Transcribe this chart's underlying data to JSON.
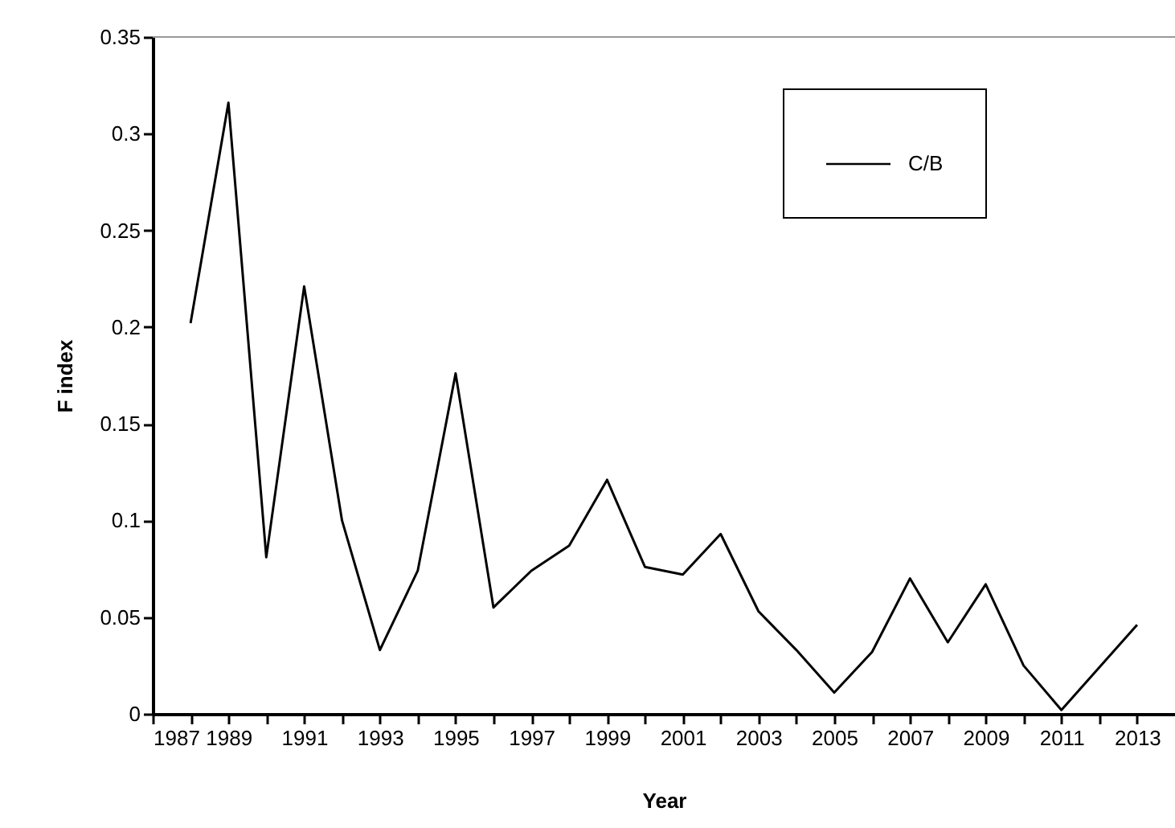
{
  "chart_data": {
    "type": "line",
    "xlabel": "Year",
    "ylabel": "F index",
    "x": [
      1988,
      1989,
      1990,
      1991,
      1992,
      1993,
      1994,
      1995,
      1996,
      1997,
      1998,
      1999,
      2000,
      2001,
      2002,
      2003,
      2004,
      2005,
      2006,
      2007,
      2008,
      2009,
      2010,
      2011,
      2012,
      2013
    ],
    "series": [
      {
        "name": "C/B",
        "color": "#000000",
        "values": [
          0.202,
          0.316,
          0.081,
          0.221,
          0.1,
          0.033,
          0.074,
          0.176,
          0.055,
          0.074,
          0.087,
          0.121,
          0.076,
          0.072,
          0.093,
          0.053,
          0.033,
          0.011,
          0.032,
          0.07,
          0.037,
          0.067,
          0.025,
          0.002,
          0.024,
          0.046
        ]
      }
    ],
    "xlim": [
      1987,
      2014
    ],
    "xticks": [
      1987,
      {
        "value": 1988,
        "label": null
      },
      1989,
      {
        "value": 1990,
        "label": null
      },
      1991,
      {
        "value": 1992,
        "label": null
      },
      1993,
      {
        "value": 1994,
        "label": null
      },
      1995,
      {
        "value": 1996,
        "label": null
      },
      1997,
      {
        "value": 1998,
        "label": null
      },
      1999,
      {
        "value": 2000,
        "label": null
      },
      2001,
      {
        "value": 2002,
        "label": null
      },
      2003,
      {
        "value": 2004,
        "label": null
      },
      2005,
      {
        "value": 2006,
        "label": null
      },
      2007,
      {
        "value": 2008,
        "label": null
      },
      2009,
      {
        "value": 2010,
        "label": null
      },
      2011,
      {
        "value": 2012,
        "label": null
      },
      2013
    ],
    "ylim": [
      0,
      0.35
    ],
    "yticks": [
      0,
      0.05,
      0.1,
      0.15,
      0.2,
      0.25,
      0.3,
      0.35
    ],
    "grid": false,
    "legend": "top right",
    "marker": "none",
    "line_style": "solid"
  }
}
